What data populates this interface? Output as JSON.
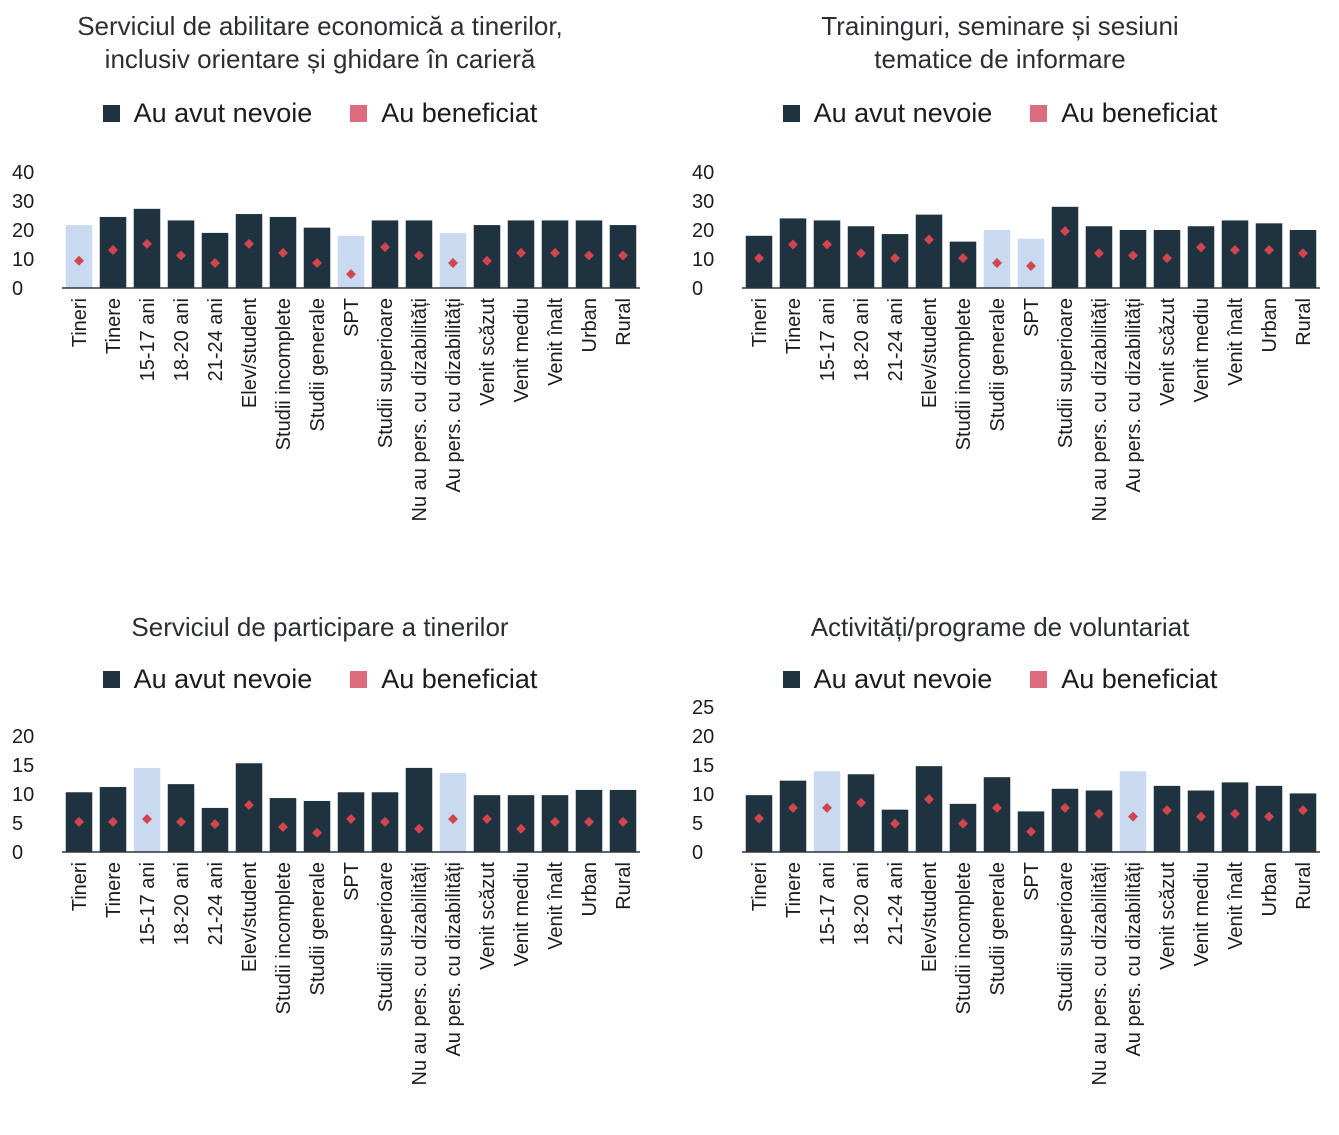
{
  "colors": {
    "need": "#1e323f",
    "need_highlight": "#c8d9f0",
    "benefit": "#d1454f",
    "legend_benefit": "#dc6b7d",
    "axis": "#333333"
  },
  "panels": [
    {
      "title_lines": [
        "Serviciul de abilitare economică a tinerilor,",
        "inclusiv orientare și ghidare în carieră"
      ],
      "legend": [
        "Au avut nevoie",
        "Au beneficiat"
      ],
      "chart_data": {
        "type": "bar",
        "categories": [
          "Tineri",
          "Tinere",
          "15-17 ani",
          "18-20 ani",
          "21-24 ani",
          "Elev/student",
          "Studii incomplete",
          "Studii generale",
          "SPT",
          "Studii superioare",
          "Nu au pers. cu dizabilități",
          "Au pers. cu dizabilități",
          "Venit scăzut",
          "Venit mediu",
          "Venit înalt",
          "Urban",
          "Rural"
        ],
        "series": [
          {
            "name": "Au avut nevoie",
            "values": [
              21.7,
              24.5,
              27.3,
              23.3,
              19.0,
              25.5,
              24.5,
              20.8,
              18.0,
              23.3,
              23.3,
              19.0,
              21.7,
              23.3,
              23.3,
              23.3,
              21.7
            ]
          },
          {
            "name": "Au beneficiat",
            "values": [
              9.4,
              13.1,
              15.2,
              11.2,
              8.6,
              15.2,
              12.1,
              8.6,
              4.8,
              14.1,
              11.2,
              8.6,
              9.4,
              12.1,
              12.1,
              11.2,
              11.2
            ]
          }
        ],
        "highlighted": [
          0,
          8,
          11
        ],
        "yticks": [
          0,
          10,
          20,
          30,
          40
        ],
        "ylim": [
          0,
          40
        ]
      }
    },
    {
      "title_lines": [
        "Traininguri, seminare și sesiuni",
        "tematice de informare"
      ],
      "legend": [
        "Au avut nevoie",
        "Au beneficiat"
      ],
      "chart_data": {
        "type": "bar",
        "categories": [
          "Tineri",
          "Tinere",
          "15-17 ani",
          "18-20 ani",
          "21-24 ani",
          "Elev/student",
          "Studii incomplete",
          "Studii generale",
          "SPT",
          "Studii superioare",
          "Nu au pers. cu dizabilități",
          "Au pers. cu dizabilități",
          "Venit scăzut",
          "Venit mediu",
          "Venit înalt",
          "Urban",
          "Rural"
        ],
        "series": [
          {
            "name": "Au avut nevoie",
            "values": [
              18.0,
              24.0,
              23.3,
              21.3,
              18.6,
              25.3,
              16.0,
              20.0,
              17.0,
              28.0,
              21.3,
              20.0,
              20.0,
              21.3,
              23.3,
              22.3,
              20.0
            ]
          },
          {
            "name": "Au beneficiat",
            "values": [
              10.3,
              15.0,
              15.0,
              12.0,
              10.3,
              16.7,
              10.3,
              8.6,
              7.6,
              19.6,
              12.0,
              11.2,
              10.3,
              14.0,
              13.1,
              13.1,
              12.0
            ]
          }
        ],
        "highlighted": [
          7,
          8
        ],
        "yticks": [
          0,
          10,
          20,
          30,
          40
        ],
        "ylim": [
          0,
          40
        ]
      }
    },
    {
      "title_lines": [
        "Serviciul de participare a tinerilor"
      ],
      "legend": [
        "Au avut nevoie",
        "Au beneficiat"
      ],
      "chart_data": {
        "type": "bar",
        "categories": [
          "Tineri",
          "Tinere",
          "15-17 ani",
          "18-20 ani",
          "21-24 ani",
          "Elev/student",
          "Studii incomplete",
          "Studii generale",
          "SPT",
          "Studii superioare",
          "Nu au pers. cu dizabilități",
          "Au pers. cu dizabilități",
          "Venit scăzut",
          "Venit mediu",
          "Venit înalt",
          "Urban",
          "Rural"
        ],
        "series": [
          {
            "name": "Au avut nevoie",
            "values": [
              10.3,
              11.2,
              14.5,
              11.7,
              7.6,
              15.3,
              9.3,
              8.8,
              10.3,
              10.3,
              14.5,
              13.6,
              9.8,
              9.8,
              9.8,
              10.7,
              10.7
            ]
          },
          {
            "name": "Au beneficiat",
            "values": [
              5.2,
              5.2,
              5.7,
              5.2,
              4.8,
              8.1,
              4.3,
              3.3,
              5.7,
              5.2,
              4.0,
              5.7,
              5.7,
              4.0,
              5.2,
              5.2,
              5.2
            ]
          }
        ],
        "highlighted": [
          2,
          11
        ],
        "yticks": [
          0,
          5,
          10,
          15,
          20
        ],
        "ylim": [
          0,
          20
        ]
      }
    },
    {
      "title_lines": [
        "Activități/programe de voluntariat"
      ],
      "legend": [
        "Au avut nevoie",
        "Au beneficiat"
      ],
      "chart_data": {
        "type": "bar",
        "categories": [
          "Tineri",
          "Tinere",
          "15-17 ani",
          "18-20 ani",
          "21-24 ani",
          "Elev/student",
          "Studii incomplete",
          "Studii generale",
          "SPT",
          "Studii superioare",
          "Nu au pers. cu dizabilități",
          "Au pers. cu dizabilități",
          "Venit scăzut",
          "Venit mediu",
          "Venit înalt",
          "Urban",
          "Rural"
        ],
        "series": [
          {
            "name": "Au avut nevoie",
            "values": [
              9.8,
              12.3,
              13.9,
              13.4,
              7.3,
              14.8,
              8.3,
              12.9,
              7.0,
              10.9,
              10.6,
              13.9,
              11.4,
              10.6,
              12.0,
              11.4,
              10.1
            ]
          },
          {
            "name": "Au beneficiat",
            "values": [
              5.8,
              7.6,
              7.6,
              8.5,
              4.9,
              9.1,
              4.9,
              7.6,
              3.5,
              7.6,
              6.6,
              6.1,
              7.2,
              6.1,
              6.6,
              6.1,
              7.2
            ]
          }
        ],
        "highlighted": [
          2,
          11
        ],
        "yticks": [
          0,
          5,
          10,
          15,
          20,
          25
        ],
        "ylim": [
          0,
          25
        ]
      }
    }
  ]
}
